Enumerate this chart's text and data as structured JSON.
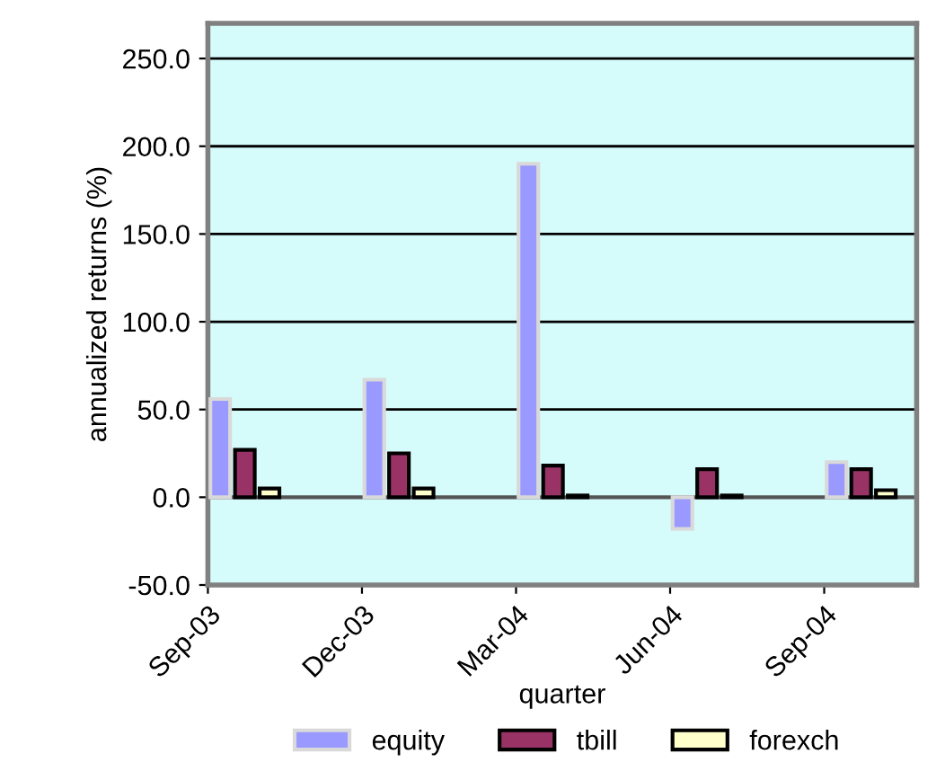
{
  "chart_data": {
    "type": "bar",
    "xlabel": "quarter",
    "ylabel": "annualized returns (%)",
    "categories": [
      "Sep-03",
      "Dec-03",
      "Mar-04",
      "Jun-04",
      "Sep-04"
    ],
    "series": [
      {
        "name": "equity",
        "color": "#9999ff",
        "values": [
          56,
          67,
          190,
          -18,
          20
        ]
      },
      {
        "name": "tbill",
        "color": "#993366",
        "values": [
          27,
          25,
          18,
          16,
          16
        ]
      },
      {
        "name": "forexch",
        "color": "#ffffcc",
        "values": [
          5,
          5,
          1,
          1,
          4
        ]
      }
    ],
    "ylim": [
      -50,
      270
    ],
    "yticks": [
      {
        "value": -50,
        "label": "-50.0"
      },
      {
        "value": 0,
        "label": "0.0"
      },
      {
        "value": 50,
        "label": "50.0"
      },
      {
        "value": 100,
        "label": "100.0"
      },
      {
        "value": 150,
        "label": "150.0"
      },
      {
        "value": 200,
        "label": "200.0"
      },
      {
        "value": 250,
        "label": "250.0"
      }
    ],
    "grid": "y",
    "legend": "bottom"
  }
}
